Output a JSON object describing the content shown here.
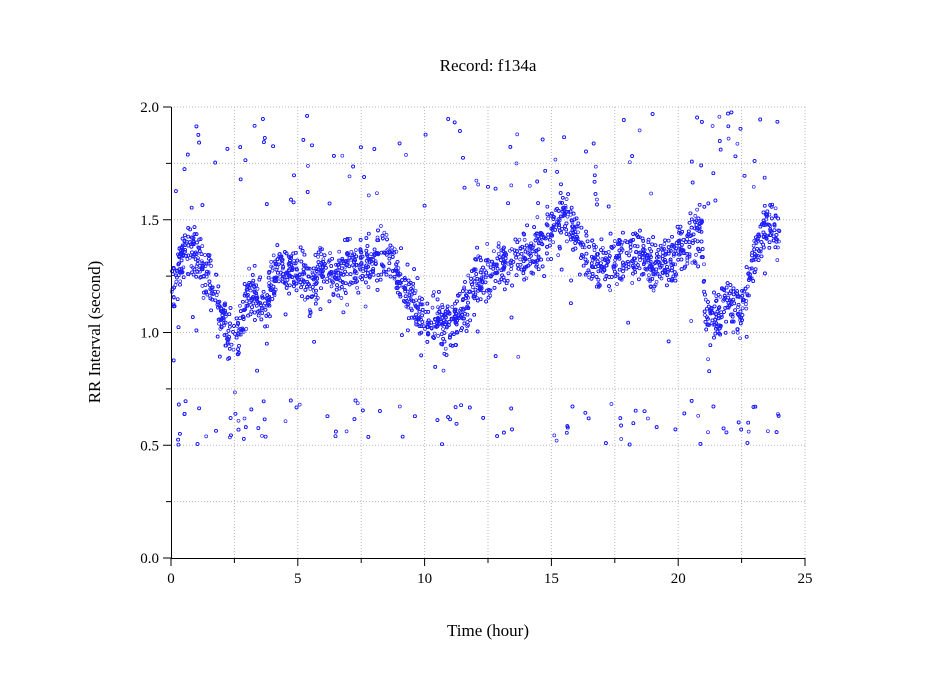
{
  "chart_data": {
    "type": "scatter",
    "title": "Record:  f134a",
    "xlabel": "Time (hour)",
    "ylabel": "RR Interval (second)",
    "xlim": [
      0,
      25
    ],
    "ylim": [
      0,
      2
    ],
    "x_ticks": [
      0,
      5,
      10,
      15,
      20,
      25
    ],
    "x_tick_labels": [
      "0",
      "5",
      "10",
      "15",
      "20",
      "25"
    ],
    "y_ticks": [
      0.0,
      0.5,
      1.0,
      1.5,
      2.0
    ],
    "y_tick_labels": [
      "0.0",
      "0.5",
      "1.0",
      "1.5",
      "2.0"
    ],
    "grid": true,
    "marker": "circle",
    "point_color": "#1f1fff",
    "series": [
      {
        "profile_time_hours": [
          0.0,
          0.3,
          0.7,
          1.0,
          1.3,
          1.7,
          2.0,
          2.3,
          2.7,
          3.0,
          3.3,
          3.7,
          4.0,
          4.5,
          5.0,
          5.5,
          6.0,
          6.5,
          7.0,
          7.5,
          8.0,
          8.5,
          9.0,
          9.5,
          10.0,
          10.5,
          11.0,
          11.5,
          12.0,
          12.5,
          13.0,
          13.5,
          14.0,
          14.5,
          15.0,
          15.5,
          16.0,
          16.5,
          17.0,
          17.5,
          18.0,
          18.5,
          19.0,
          19.5,
          20.0,
          20.5,
          20.9,
          21.1,
          21.5,
          22.0,
          22.5,
          23.0,
          23.5,
          24.0
        ],
        "profile_rr_seconds": [
          1.15,
          1.3,
          1.38,
          1.35,
          1.28,
          1.22,
          1.05,
          1.0,
          0.98,
          1.15,
          1.2,
          1.1,
          1.25,
          1.28,
          1.28,
          1.2,
          1.3,
          1.25,
          1.3,
          1.32,
          1.3,
          1.38,
          1.25,
          1.15,
          1.05,
          1.05,
          1.02,
          1.1,
          1.22,
          1.25,
          1.3,
          1.32,
          1.35,
          1.4,
          1.45,
          1.52,
          1.45,
          1.3,
          1.3,
          1.35,
          1.33,
          1.35,
          1.3,
          1.3,
          1.35,
          1.42,
          1.45,
          1.1,
          1.05,
          1.15,
          1.1,
          1.35,
          1.48,
          1.45
        ],
        "band_spread_seconds": 0.14,
        "beat_count": 7200
      }
    ]
  }
}
